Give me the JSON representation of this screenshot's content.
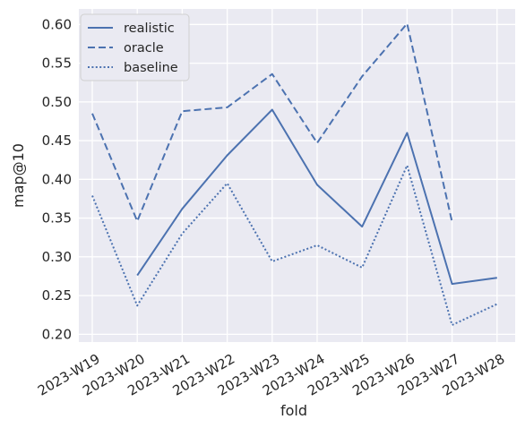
{
  "chart_data": {
    "type": "line",
    "title": "",
    "xlabel": "fold",
    "ylabel": "map@10",
    "categories": [
      "2023-W19",
      "2023-W20",
      "2023-W21",
      "2023-W22",
      "2023-W23",
      "2023-W24",
      "2023-W25",
      "2023-W26",
      "2023-W27",
      "2023-W28"
    ],
    "yticks": [
      "0.20",
      "0.25",
      "0.30",
      "0.35",
      "0.40",
      "0.45",
      "0.50",
      "0.55",
      "0.60"
    ],
    "ylim": [
      0.19,
      0.62
    ],
    "grid": true,
    "legend_position": "top-left",
    "line_color": "#4c72b0",
    "series": [
      {
        "name": "realistic",
        "style": "solid",
        "values": [
          null,
          0.276,
          0.362,
          0.431,
          0.49,
          0.393,
          0.339,
          0.46,
          0.265,
          0.273
        ]
      },
      {
        "name": "oracle",
        "style": "dashed",
        "values": [
          0.485,
          0.346,
          0.488,
          0.493,
          0.536,
          0.447,
          0.533,
          0.601,
          0.345,
          null
        ]
      },
      {
        "name": "baseline",
        "style": "dotted",
        "values": [
          0.379,
          0.237,
          0.33,
          0.395,
          0.294,
          0.315,
          0.286,
          0.418,
          0.212,
          0.239
        ]
      }
    ]
  }
}
